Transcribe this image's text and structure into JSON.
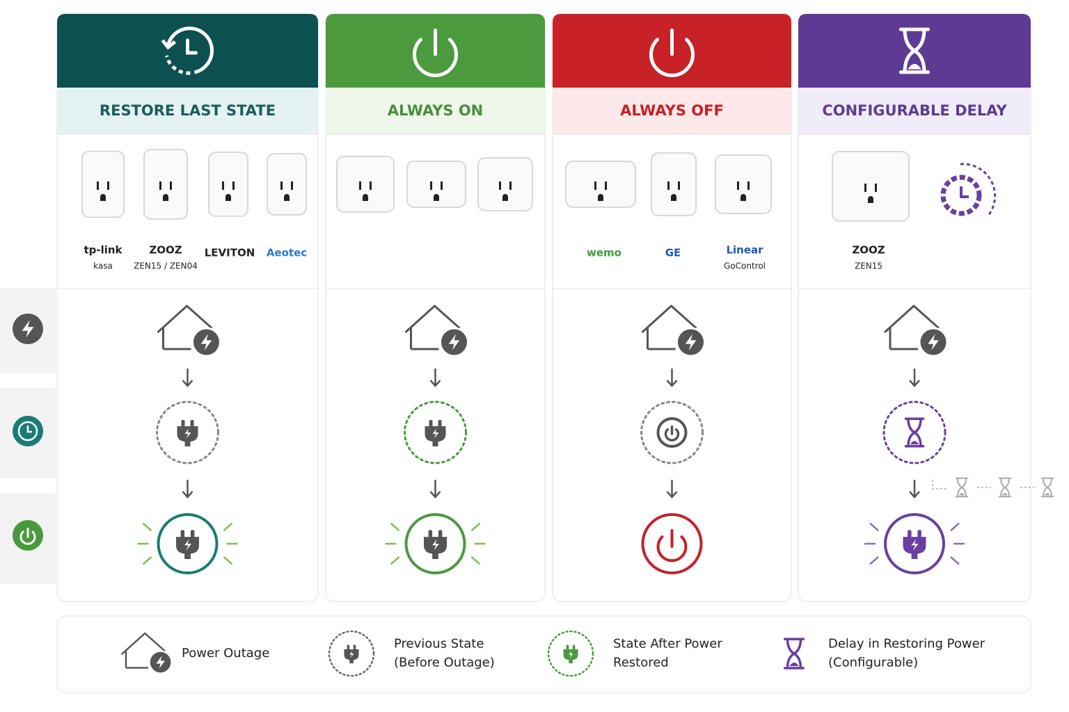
{
  "columns": [
    {
      "title": "RESTORE LAST STATE",
      "brands": [
        {
          "name": "tp-link",
          "sub": "kasa"
        },
        {
          "name": "ZOOZ",
          "sub": "ZEN15 / ZEN04"
        },
        {
          "name": "LEVITON"
        },
        {
          "name": "Aeotec"
        }
      ]
    },
    {
      "title": "ALWAYS ON",
      "brands": []
    },
    {
      "title": "ALWAYS OFF",
      "brands": [
        {
          "name": "wemo"
        },
        {
          "name": "GE"
        },
        {
          "name": "Linear",
          "sub": "GoControl"
        }
      ]
    },
    {
      "title": "CONFIGURABLE DELAY",
      "brands": [
        {
          "name": "ZOOZ",
          "sub": "ZEN15"
        }
      ]
    }
  ],
  "legend": [
    {
      "lines": [
        "Power Outage"
      ]
    },
    {
      "lines": [
        "Previous State",
        "(Before Outage)"
      ]
    },
    {
      "lines": [
        "State After Power",
        "Restored"
      ]
    },
    {
      "lines": [
        "Delay in Restoring Power",
        "(Configurable)"
      ]
    }
  ]
}
